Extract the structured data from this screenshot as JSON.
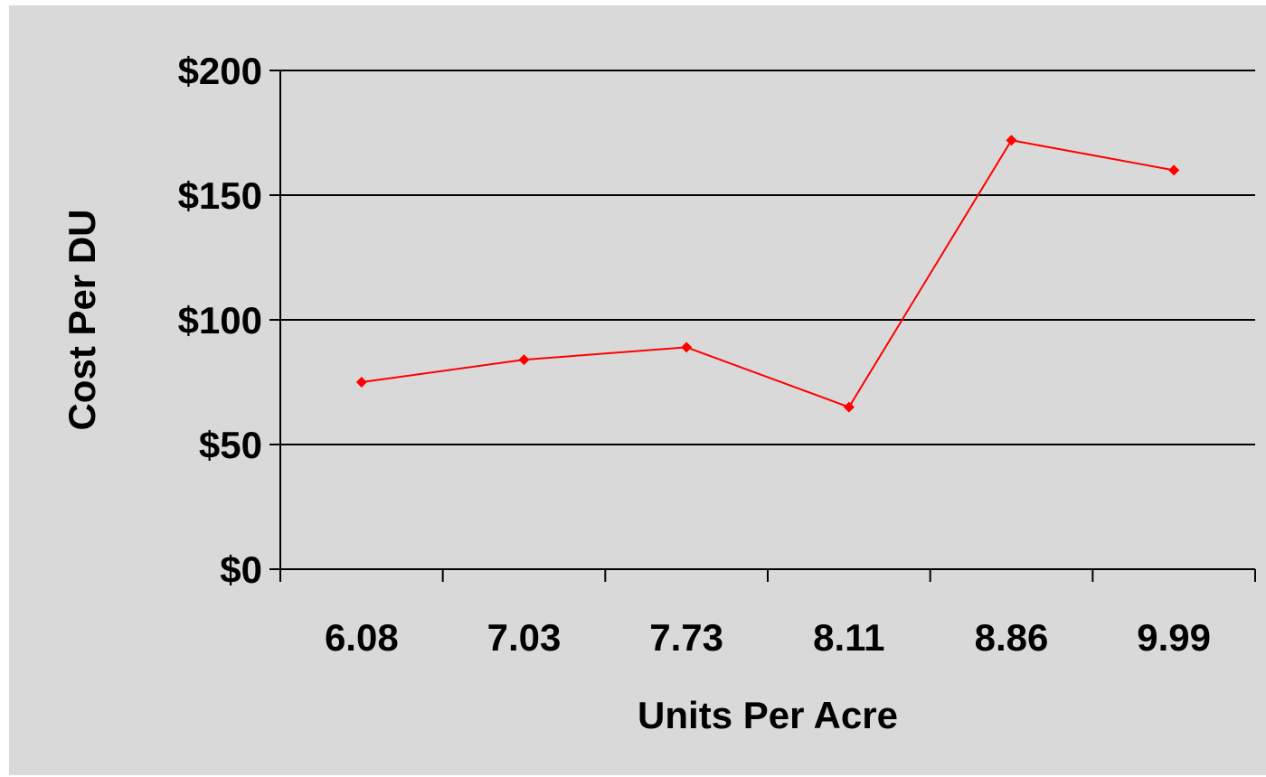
{
  "chart_data": {
    "type": "line",
    "title": "",
    "xlabel": "Units Per Acre",
    "ylabel": "Cost Per DU",
    "categories": [
      "6.08",
      "7.03",
      "7.73",
      "8.11",
      "8.86",
      "9.99"
    ],
    "values": [
      75,
      84,
      89,
      65,
      172,
      160
    ],
    "ylim": [
      0,
      200
    ],
    "yticks": [
      0,
      50,
      100,
      150,
      200
    ],
    "ytick_labels": [
      "$0",
      "$50",
      "$100",
      "$150",
      "$200"
    ],
    "grid": "horizontal",
    "legend": "none",
    "colors": {
      "line": "#ff0000",
      "marker": "#ff0000",
      "plot_background": "#d9d9d9",
      "grid": "#000000"
    },
    "marker": "diamond"
  }
}
